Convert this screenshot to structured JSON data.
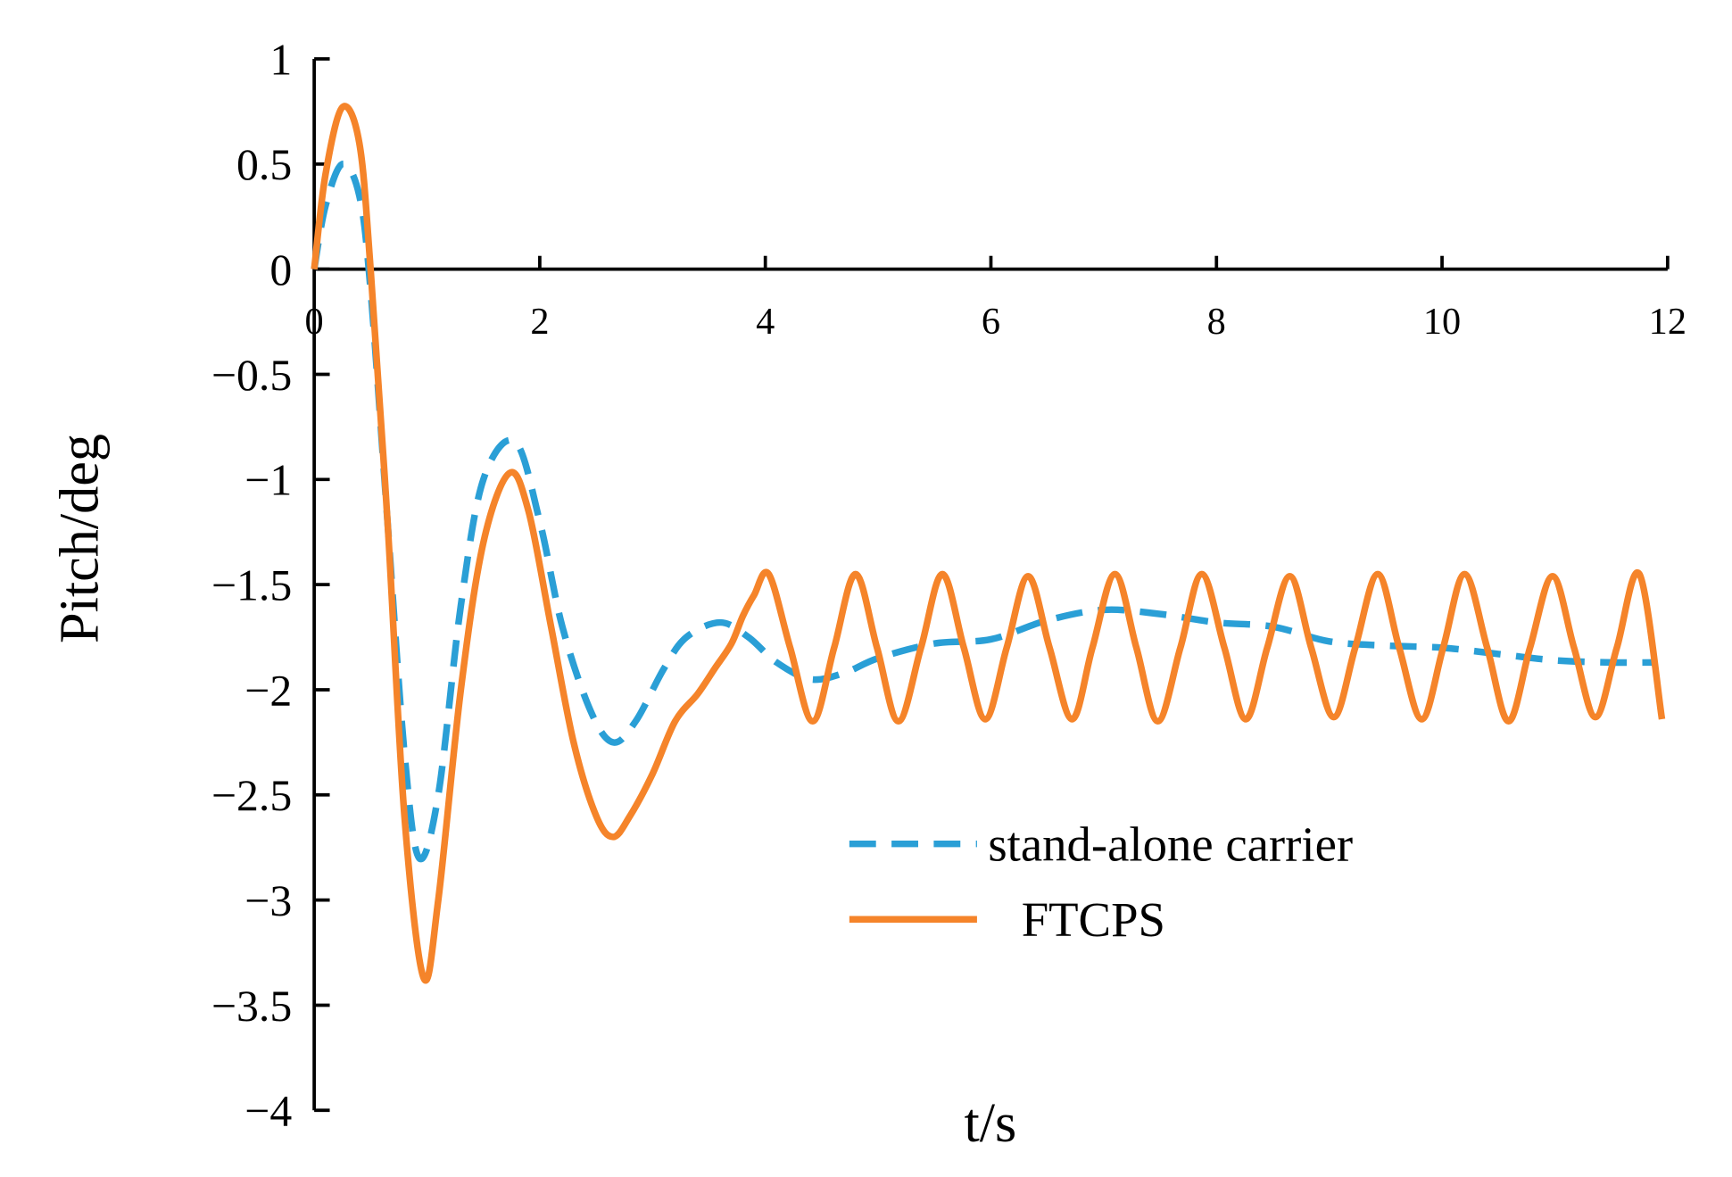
{
  "chart_data": {
    "type": "line",
    "x_label": "t/s",
    "y_label": "Pitch/deg",
    "xlim": [
      0,
      12
    ],
    "ylim": [
      -4,
      1
    ],
    "xticks": [
      0,
      2,
      4,
      6,
      8,
      10,
      12
    ],
    "yticks": [
      {
        "value": -4,
        "label": "−4"
      },
      {
        "value": -3.5,
        "label": "−3.5"
      },
      {
        "value": -3,
        "label": "−3"
      },
      {
        "value": -2.5,
        "label": "−2.5"
      },
      {
        "value": -2,
        "label": "−2"
      },
      {
        "value": -1.5,
        "label": "−1.5"
      },
      {
        "value": -1,
        "label": "−1"
      },
      {
        "value": -0.5,
        "label": "−0.5"
      },
      0,
      0.5,
      1
    ],
    "legend_position": "lower center",
    "series": [
      {
        "name": "stand-alone carrier",
        "color": "#2a9fd6",
        "dash": true,
        "x": [
          0,
          0.1,
          0.25,
          0.4,
          0.5,
          0.65,
          0.8,
          0.93,
          1.1,
          1.3,
          1.5,
          1.78,
          2.0,
          2.2,
          2.45,
          2.65,
          2.85,
          3.1,
          3.3,
          3.6,
          3.85,
          4.1,
          4.4,
          4.7,
          5.0,
          5.5,
          6.0,
          6.5,
          7.0,
          7.5,
          8.0,
          8.5,
          9.0,
          9.5,
          10.0,
          10.5,
          11.0,
          11.5,
          11.9
        ],
        "values": [
          0,
          0.3,
          0.5,
          0.35,
          -0.1,
          -1.2,
          -2.3,
          -2.8,
          -2.5,
          -1.6,
          -1.0,
          -0.82,
          -1.2,
          -1.7,
          -2.1,
          -2.25,
          -2.15,
          -1.9,
          -1.75,
          -1.68,
          -1.75,
          -1.87,
          -1.95,
          -1.92,
          -1.85,
          -1.78,
          -1.76,
          -1.67,
          -1.62,
          -1.64,
          -1.68,
          -1.7,
          -1.77,
          -1.79,
          -1.8,
          -1.83,
          -1.86,
          -1.87,
          -1.87
        ]
      },
      {
        "name": "FTCPS",
        "color": "#f5842a",
        "dash": false,
        "x": [
          0,
          0.1,
          0.25,
          0.4,
          0.5,
          0.65,
          0.8,
          0.97,
          1.1,
          1.3,
          1.5,
          1.73,
          1.9,
          2.1,
          2.3,
          2.5,
          2.65,
          2.8,
          3.0,
          3.2,
          3.4,
          3.55,
          3.7,
          3.8,
          3.9,
          4.03,
          4.22,
          4.42,
          4.61,
          4.8,
          4.99,
          5.18,
          5.38,
          5.57,
          5.76,
          5.95,
          6.14,
          6.33,
          6.52,
          6.72,
          6.9,
          7.1,
          7.29,
          7.48,
          7.68,
          7.87,
          8.07,
          8.26,
          8.45,
          8.65,
          8.84,
          9.04,
          9.23,
          9.43,
          9.62,
          9.82,
          10.01,
          10.2,
          10.4,
          10.59,
          10.78,
          10.98,
          11.17,
          11.36,
          11.55,
          11.75,
          11.95
        ],
        "values": [
          0,
          0.45,
          0.77,
          0.6,
          0,
          -1.2,
          -2.6,
          -3.37,
          -3.0,
          -2.0,
          -1.3,
          -0.97,
          -1.15,
          -1.7,
          -2.25,
          -2.6,
          -2.7,
          -2.6,
          -2.4,
          -2.15,
          -2.02,
          -1.9,
          -1.78,
          -1.65,
          -1.55,
          -1.45,
          -1.8,
          -2.15,
          -1.8,
          -1.45,
          -1.8,
          -2.15,
          -1.8,
          -1.45,
          -1.8,
          -2.14,
          -1.8,
          -1.46,
          -1.8,
          -2.14,
          -1.8,
          -1.45,
          -1.8,
          -2.15,
          -1.8,
          -1.45,
          -1.8,
          -2.14,
          -1.8,
          -1.46,
          -1.8,
          -2.13,
          -1.8,
          -1.45,
          -1.8,
          -2.14,
          -1.8,
          -1.45,
          -1.8,
          -2.15,
          -1.8,
          -1.46,
          -1.8,
          -2.13,
          -1.8,
          -1.45,
          -2.14
        ]
      }
    ]
  }
}
